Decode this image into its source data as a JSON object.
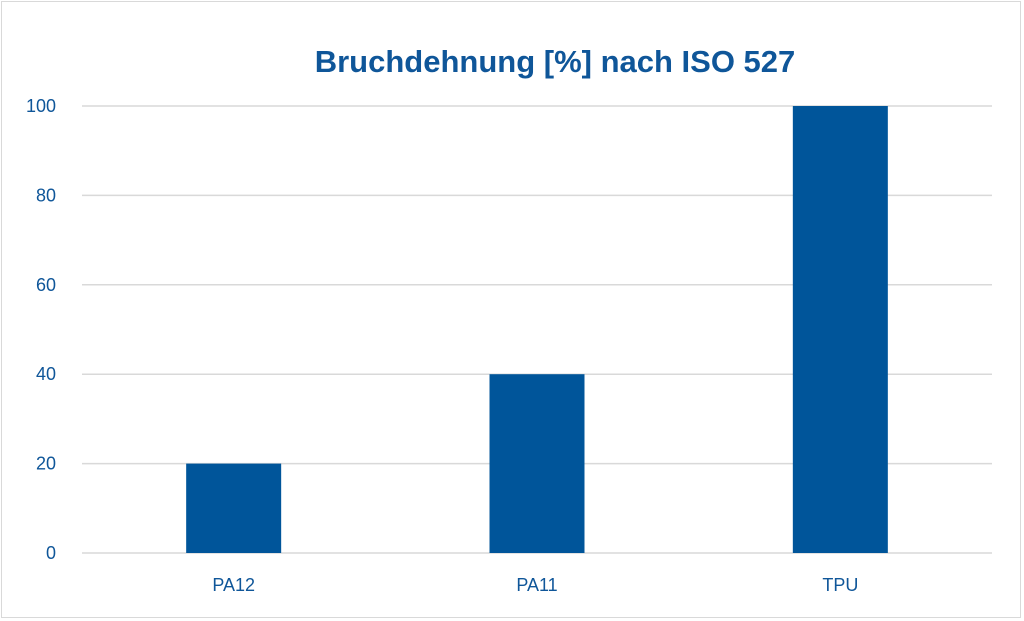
{
  "chart_data": {
    "type": "bar",
    "title": "Bruchdehnung [%] nach ISO 527",
    "categories": [
      "PA12",
      "PA11",
      "TPU"
    ],
    "values": [
      20,
      40,
      100
    ],
    "xlabel": "",
    "ylabel": "",
    "ylim": [
      0,
      100
    ],
    "yticks": [
      0,
      20,
      40,
      60,
      80,
      100
    ],
    "grid": true,
    "legend": "none",
    "colors": {
      "bar": "#00559a",
      "text": "#0f5699",
      "grid": "#d9d9d9"
    }
  }
}
